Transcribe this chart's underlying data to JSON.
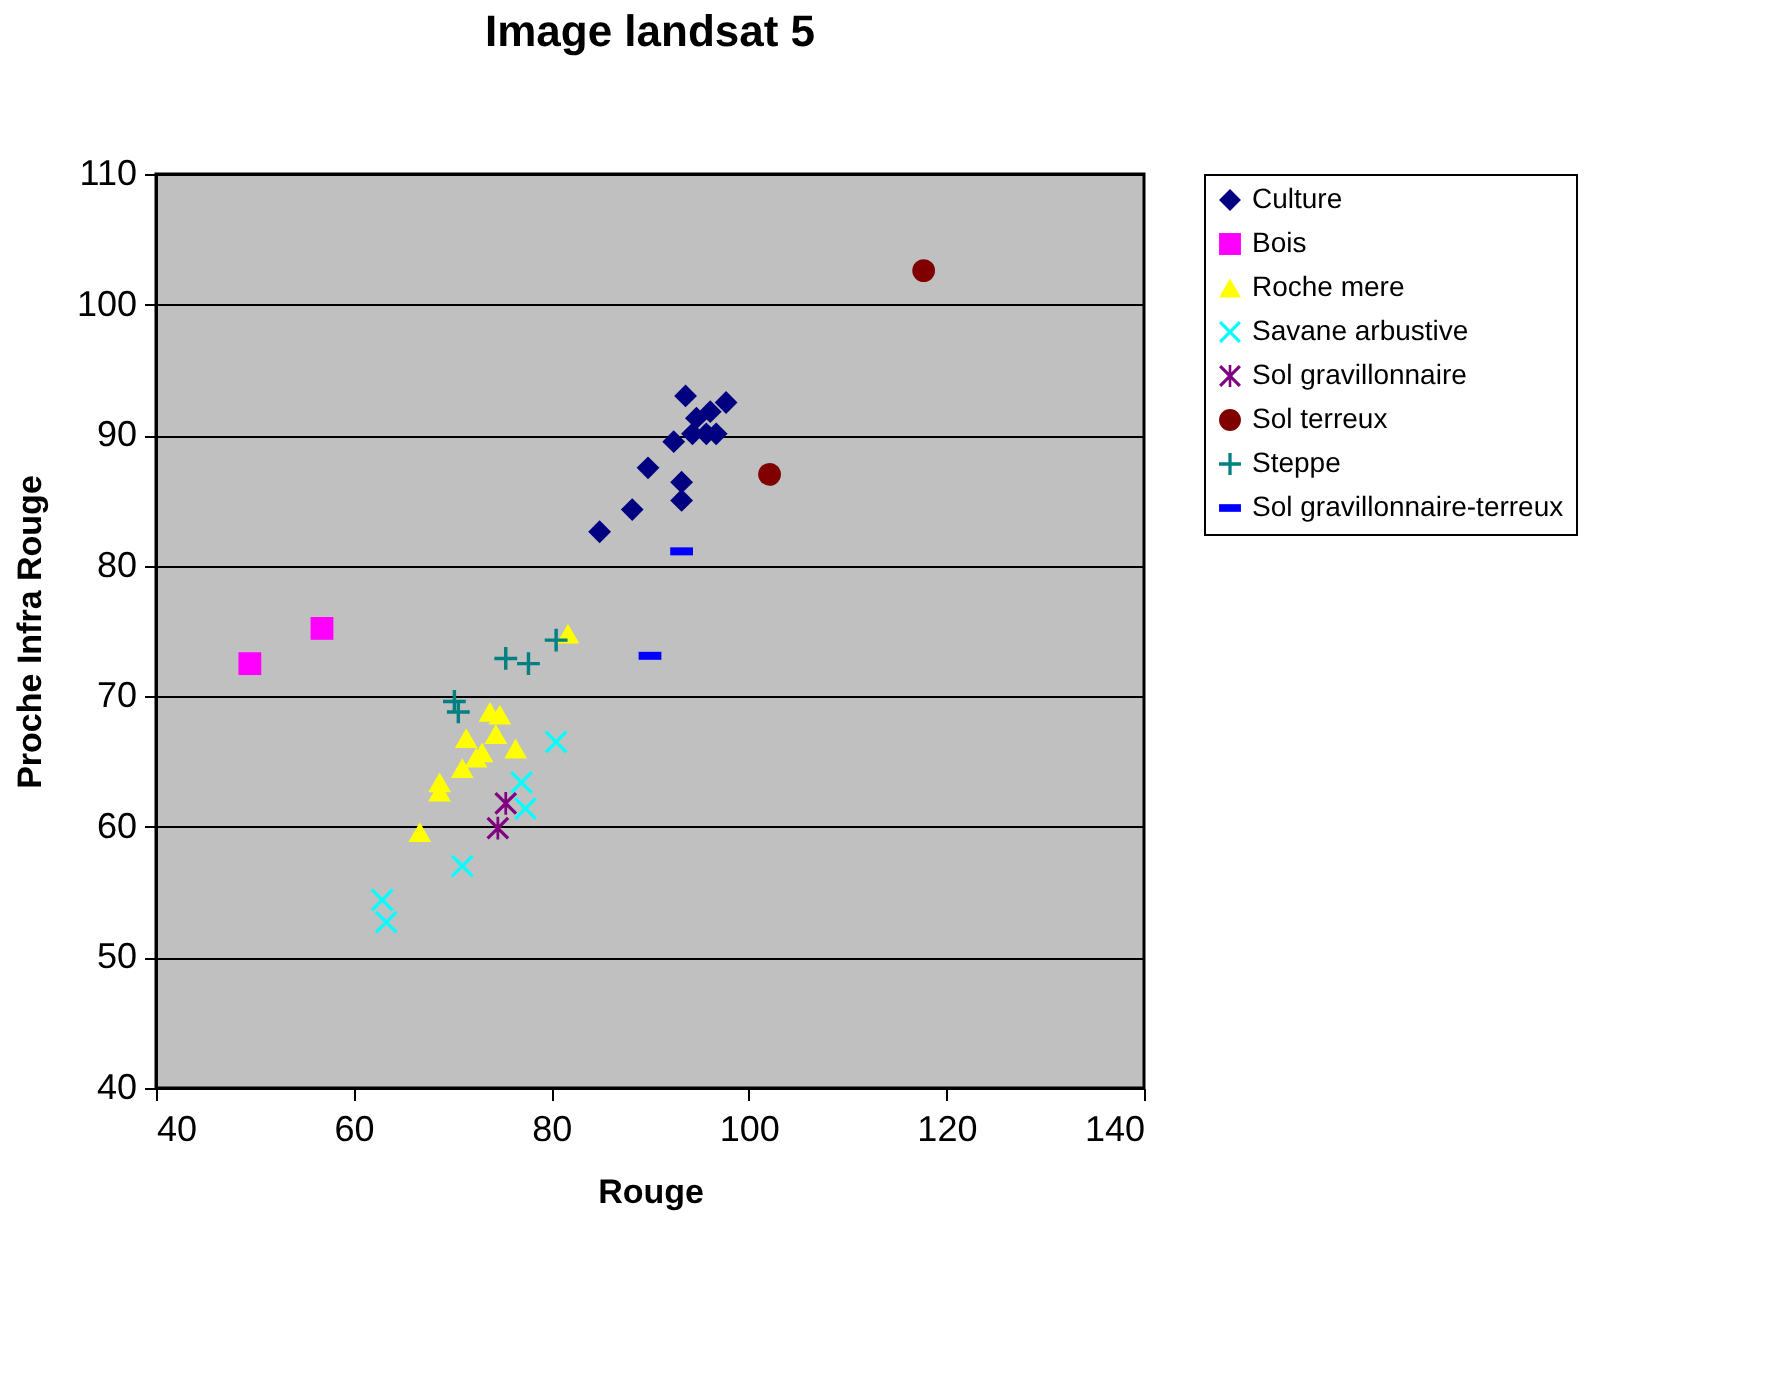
{
  "chart_data": {
    "type": "scatter",
    "title": "Image landsat 5",
    "xlabel": "Rouge",
    "ylabel": "Proche Infra Rouge",
    "xlim": [
      40,
      140
    ],
    "xticks": [
      40,
      60,
      80,
      100,
      120,
      140
    ],
    "ylim": [
      40,
      110
    ],
    "yticks": [
      40,
      50,
      60,
      70,
      80,
      90,
      100,
      110
    ],
    "grid": "y",
    "legend": "right",
    "series": [
      {
        "name": "Culture",
        "color": "#000080",
        "marker": "diamond",
        "x": [
          84.9,
          88.2,
          89.8,
          92.4,
          93.2,
          93.2,
          93.6,
          94.3,
          96.1,
          96.7,
          97.7,
          95.7,
          94.7
        ],
        "values": [
          82.6,
          84.3,
          87.5,
          89.5,
          85.0,
          86.4,
          93.0,
          90.1,
          91.8,
          90.1,
          92.5,
          90.1,
          91.3
        ]
      },
      {
        "name": "Bois",
        "color": "#ff00ff",
        "marker": "square",
        "x": [
          49.5,
          56.8
        ],
        "values": [
          72.5,
          75.2
        ]
      },
      {
        "name": "Roche mere",
        "color": "#ffff00",
        "marker": "triangle",
        "x": [
          81.7,
          73.8,
          74.8,
          71.4,
          74.4,
          76.4,
          72.4,
          71.0,
          68.7,
          68.7,
          66.7,
          73.0
        ],
        "values": [
          74.8,
          68.8,
          68.6,
          66.8,
          67.1,
          66.0,
          65.3,
          64.5,
          63.4,
          62.7,
          59.6,
          65.7
        ]
      },
      {
        "name": "Savane arbustive",
        "color": "#00ffff",
        "marker": "x",
        "x": [
          80.5,
          77.0,
          77.4,
          71.0,
          62.9,
          63.3
        ],
        "values": [
          66.5,
          63.4,
          61.4,
          57.0,
          54.4,
          52.7
        ]
      },
      {
        "name": "Sol gravillonnaire",
        "color": "#800080",
        "marker": "star",
        "x": [
          75.4,
          74.6
        ],
        "values": [
          61.8,
          59.9
        ]
      },
      {
        "name": "Sol terreux",
        "color": "#800000",
        "marker": "circle",
        "x": [
          102.1,
          117.7
        ],
        "values": [
          87.0,
          102.6
        ]
      },
      {
        "name": "Steppe",
        "color": "#008080",
        "marker": "cross",
        "x": [
          80.5,
          75.4,
          77.7,
          70.2,
          70.6
        ],
        "values": [
          74.3,
          72.9,
          72.5,
          69.6,
          68.8
        ]
      },
      {
        "name": "Sol gravillonnaire-terreux",
        "color": "#0000ff",
        "x": [
          93.2,
          90.0
        ],
        "values": [
          81.1,
          73.1
        ]
      }
    ]
  }
}
